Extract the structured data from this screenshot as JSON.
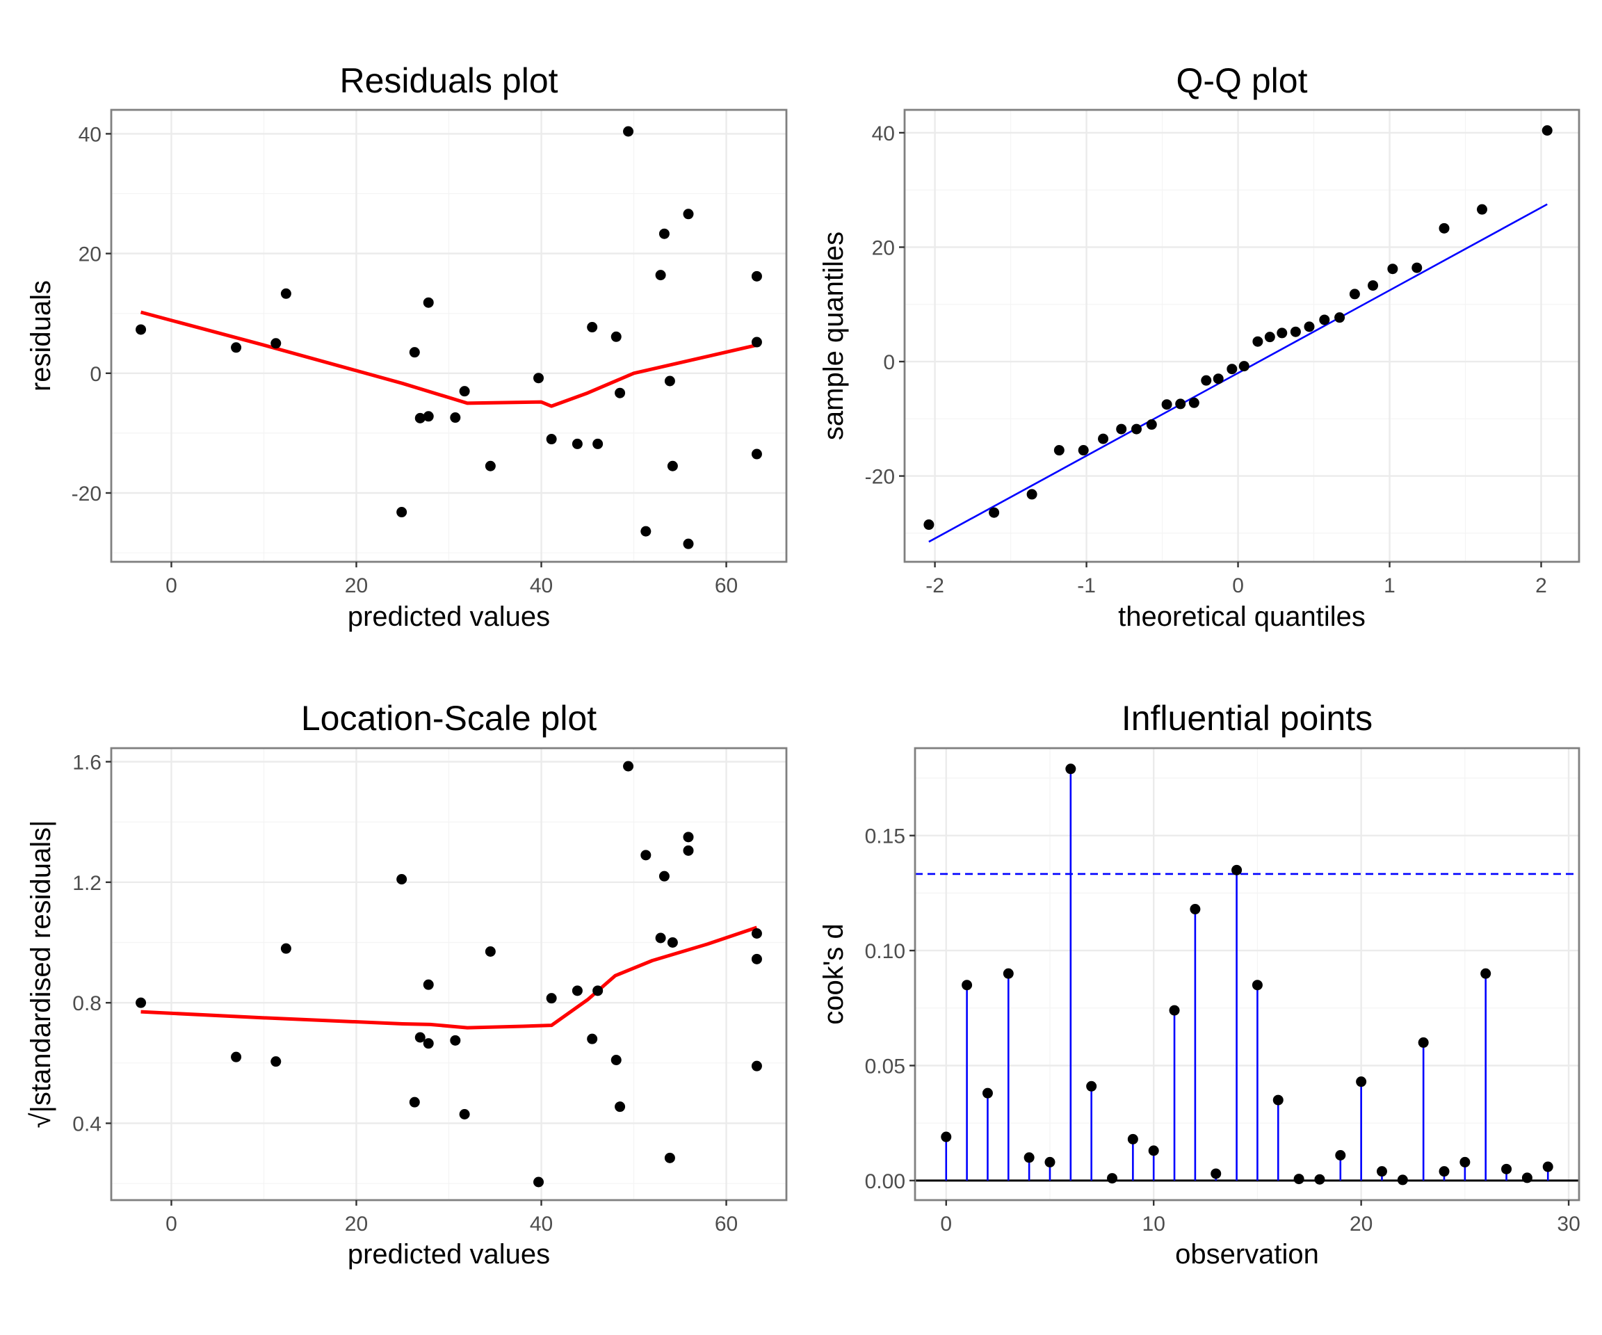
{
  "chart_data": [
    {
      "type": "scatter",
      "title": "Residuals plot",
      "xlabel": "predicted values",
      "ylabel": "residuals",
      "xlim": [
        -6.5,
        66.5
      ],
      "ylim": [
        -31.5,
        44
      ],
      "xticks": [
        0,
        20,
        40,
        60
      ],
      "xtick_labels": [
        "0",
        "20",
        "40",
        "60"
      ],
      "yticks": [
        -20,
        0,
        20,
        40
      ],
      "ytick_labels": [
        "-20",
        "0",
        "20",
        "40"
      ],
      "grid": true,
      "points": [
        [
          -3.3,
          7.3
        ],
        [
          7.0,
          4.3
        ],
        [
          11.3,
          5.0
        ],
        [
          12.4,
          13.3
        ],
        [
          24.9,
          -23.2
        ],
        [
          26.3,
          3.5
        ],
        [
          26.9,
          -7.5
        ],
        [
          27.8,
          11.8
        ],
        [
          27.8,
          -7.2
        ],
        [
          30.7,
          -7.4
        ],
        [
          31.7,
          -3.0
        ],
        [
          34.5,
          -15.5
        ],
        [
          39.7,
          -0.8
        ],
        [
          41.1,
          -11.0
        ],
        [
          43.9,
          -11.8
        ],
        [
          45.5,
          7.7
        ],
        [
          46.1,
          -11.8
        ],
        [
          48.1,
          6.1
        ],
        [
          48.5,
          -3.3
        ],
        [
          49.4,
          40.4
        ],
        [
          51.3,
          -26.4
        ],
        [
          52.9,
          16.4
        ],
        [
          53.3,
          23.3
        ],
        [
          53.9,
          -1.3
        ],
        [
          54.2,
          -15.5
        ],
        [
          55.9,
          26.6
        ],
        [
          55.9,
          -28.5
        ],
        [
          63.3,
          16.2
        ],
        [
          63.3,
          5.2
        ],
        [
          63.3,
          -13.5
        ]
      ],
      "trend": [
        [
          -3.3,
          10.2
        ],
        [
          10,
          4.7
        ],
        [
          25,
          -1.7
        ],
        [
          32,
          -5.0
        ],
        [
          40,
          -4.8
        ],
        [
          41.1,
          -5.5
        ],
        [
          45,
          -3.3
        ],
        [
          50,
          0.0
        ],
        [
          63.3,
          4.7
        ]
      ],
      "colors": {
        "points": "#000000",
        "trend": "#ff0000"
      }
    },
    {
      "type": "scatter",
      "title": "Q-Q plot",
      "xlabel": "theoretical quantiles",
      "ylabel": "sample quantiles",
      "xlim": [
        -2.2,
        2.25
      ],
      "ylim": [
        -35,
        44
      ],
      "xticks": [
        -2,
        -1,
        0,
        1,
        2
      ],
      "xtick_labels": [
        "-2",
        "-1",
        "0",
        "1",
        "2"
      ],
      "yticks": [
        -20,
        0,
        20,
        40
      ],
      "ytick_labels": [
        "-20",
        "0",
        "20",
        "40"
      ],
      "grid": true,
      "points": [
        [
          -2.04,
          -28.5
        ],
        [
          -1.61,
          -26.4
        ],
        [
          -1.36,
          -23.2
        ],
        [
          -1.18,
          -15.5
        ],
        [
          -1.02,
          -15.5
        ],
        [
          -0.89,
          -13.5
        ],
        [
          -0.77,
          -11.8
        ],
        [
          -0.67,
          -11.8
        ],
        [
          -0.57,
          -11.0
        ],
        [
          -0.47,
          -7.5
        ],
        [
          -0.38,
          -7.4
        ],
        [
          -0.29,
          -7.2
        ],
        [
          -0.21,
          -3.3
        ],
        [
          -0.13,
          -3.0
        ],
        [
          -0.04,
          -1.3
        ],
        [
          0.04,
          -0.8
        ],
        [
          0.13,
          3.5
        ],
        [
          0.21,
          4.3
        ],
        [
          0.29,
          5.0
        ],
        [
          0.38,
          5.2
        ],
        [
          0.47,
          6.1
        ],
        [
          0.57,
          7.3
        ],
        [
          0.67,
          7.7
        ],
        [
          0.77,
          11.8
        ],
        [
          0.89,
          13.3
        ],
        [
          1.02,
          16.2
        ],
        [
          1.18,
          16.4
        ],
        [
          1.36,
          23.3
        ],
        [
          1.61,
          26.6
        ],
        [
          2.04,
          40.4
        ]
      ],
      "reference_line": [
        [
          -2.04,
          -31.5
        ],
        [
          2.04,
          27.5
        ]
      ],
      "colors": {
        "points": "#000000",
        "reference_line": "#0000ff"
      }
    },
    {
      "type": "scatter",
      "title": "Location-Scale plot",
      "xlabel": "predicted values",
      "ylabel": "√|standardised residuals|",
      "xlim": [
        -6.5,
        66.5
      ],
      "ylim": [
        0.145,
        1.645
      ],
      "xticks": [
        0,
        20,
        40,
        60
      ],
      "xtick_labels": [
        "0",
        "20",
        "40",
        "60"
      ],
      "yticks": [
        0.4,
        0.8,
        1.2,
        1.6
      ],
      "ytick_labels": [
        "0.4",
        "0.8",
        "1.2",
        "1.6"
      ],
      "grid": true,
      "points": [
        [
          -3.3,
          0.8
        ],
        [
          7.0,
          0.62
        ],
        [
          11.3,
          0.605
        ],
        [
          12.4,
          0.98
        ],
        [
          24.9,
          1.21
        ],
        [
          26.3,
          0.47
        ],
        [
          26.9,
          0.685
        ],
        [
          27.8,
          0.86
        ],
        [
          27.8,
          0.665
        ],
        [
          30.7,
          0.675
        ],
        [
          31.7,
          0.43
        ],
        [
          34.5,
          0.97
        ],
        [
          39.7,
          0.205
        ],
        [
          41.1,
          0.815
        ],
        [
          43.9,
          0.84
        ],
        [
          45.5,
          0.68
        ],
        [
          46.1,
          0.84
        ],
        [
          48.1,
          0.61
        ],
        [
          48.5,
          0.455
        ],
        [
          49.4,
          1.585
        ],
        [
          51.3,
          1.29
        ],
        [
          52.9,
          1.015
        ],
        [
          53.3,
          1.22
        ],
        [
          53.9,
          0.285
        ],
        [
          54.2,
          1.0
        ],
        [
          55.9,
          1.35
        ],
        [
          55.9,
          1.305
        ],
        [
          63.3,
          1.03
        ],
        [
          63.3,
          0.945
        ],
        [
          63.3,
          0.59
        ]
      ],
      "trend": [
        [
          -3.3,
          0.77
        ],
        [
          10,
          0.75
        ],
        [
          25,
          0.73
        ],
        [
          28,
          0.728
        ],
        [
          32,
          0.717
        ],
        [
          38,
          0.722
        ],
        [
          41.1,
          0.725
        ],
        [
          45,
          0.81
        ],
        [
          48,
          0.89
        ],
        [
          52,
          0.94
        ],
        [
          58,
          0.995
        ],
        [
          63.3,
          1.05
        ]
      ],
      "colors": {
        "points": "#000000",
        "trend": "#ff0000"
      }
    },
    {
      "type": "scatter",
      "title": "Influential points",
      "xlabel": "observation",
      "ylabel": "cook's d",
      "xlim": [
        -1.5,
        30.5
      ],
      "ylim": [
        -0.0085,
        0.188
      ],
      "xticks": [
        0,
        10,
        20,
        30
      ],
      "xtick_labels": [
        "0",
        "10",
        "20",
        "30"
      ],
      "yticks": [
        0.0,
        0.05,
        0.1,
        0.15
      ],
      "ytick_labels": [
        "0.00",
        "0.05",
        "0.10",
        "0.15"
      ],
      "grid": true,
      "observations": [
        0,
        1,
        2,
        3,
        4,
        5,
        6,
        7,
        8,
        9,
        10,
        11,
        12,
        13,
        14,
        15,
        16,
        17,
        18,
        19,
        20,
        21,
        22,
        23,
        24,
        25,
        26,
        27,
        28,
        29
      ],
      "cooks_d": [
        0.019,
        0.085,
        0.038,
        0.09,
        0.01,
        0.008,
        0.179,
        0.041,
        0.001,
        0.018,
        0.013,
        0.074,
        0.118,
        0.003,
        0.135,
        0.085,
        0.035,
        0.0007,
        0.0005,
        0.011,
        0.043,
        0.004,
        0.0003,
        0.06,
        0.004,
        0.008,
        0.09,
        0.005,
        0.0012,
        0.006
      ],
      "threshold": 0.1333,
      "colors": {
        "points": "#000000",
        "stems": "#0000ff",
        "threshold": "#0000ff",
        "baseline": "#000000"
      }
    }
  ]
}
